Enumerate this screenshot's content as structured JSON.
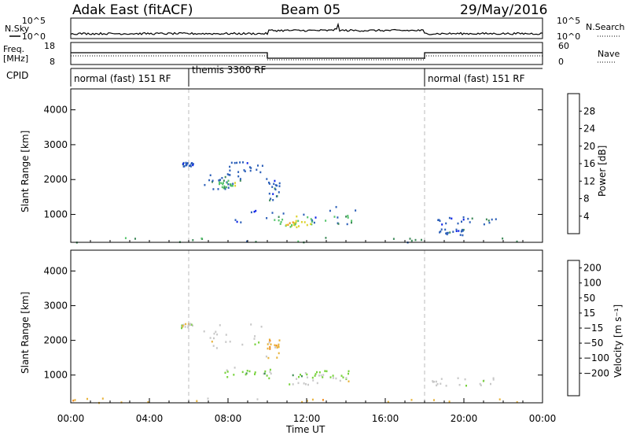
{
  "header": {
    "title_left": "Adak East (fitACF)",
    "title_center": "Beam 05",
    "title_right": "29/May/2016"
  },
  "aux": {
    "nsky_label": "N.Sky",
    "nsky_ticks": [
      "10^5",
      "10^0"
    ],
    "nsearch_label": "N.Search",
    "nsearch_ticks": [
      "10^5",
      "10^0"
    ],
    "freq_label_1": "Freq.",
    "freq_label_2": "[MHz]",
    "freq_ticks": [
      "18",
      "8"
    ],
    "nave_label": "Nave",
    "nave_ticks": [
      "60",
      "0"
    ],
    "cpid_label": "CPID",
    "cpid_segments": [
      {
        "label": "normal (fast) 151 RF",
        "start_hour": 0,
        "end_hour": 6
      },
      {
        "label": "themis 3300 RF",
        "start_hour": 6,
        "end_hour": 18
      },
      {
        "label": "normal (fast) 151 RF",
        "start_hour": 18,
        "end_hour": 24
      }
    ]
  },
  "chart_data": [
    {
      "type": "scatter",
      "name": "power",
      "ylabel": "Slant Range [km]",
      "xlim": [
        0,
        24
      ],
      "ylim": [
        200,
        4600
      ],
      "yticks": [
        "1000",
        "2000",
        "3000",
        "4000"
      ],
      "colorbar_label": "Power [dB]",
      "colorbar_ticks": [
        "4",
        "8",
        "12",
        "16",
        "20",
        "24",
        "28"
      ],
      "colorbar_colors": [
        "#0b22e8",
        "#2b5fb8",
        "#3f8a5a",
        "#54c46a",
        "#dcd22a",
        "#ee9a1e",
        "#ee3a12",
        "#e4101a"
      ],
      "scatter_regions": [
        {
          "x": [
            5.6,
            6.2
          ],
          "y": [
            2380,
            2520
          ],
          "level": 1
        },
        {
          "x": [
            6.6,
            8.6
          ],
          "y": [
            1750,
            2250
          ],
          "level": 1
        },
        {
          "x": [
            7.4,
            8.4
          ],
          "y": [
            1780,
            2000
          ],
          "level": 3
        },
        {
          "x": [
            8.0,
            9.8
          ],
          "y": [
            2100,
            2550
          ],
          "level": 1
        },
        {
          "x": [
            9.9,
            10.6
          ],
          "y": [
            1400,
            2050
          ],
          "level": 1
        },
        {
          "x": [
            7.8,
            14.6
          ],
          "y": [
            720,
            1250
          ],
          "level": 1
        },
        {
          "x": [
            10.2,
            14.4
          ],
          "y": [
            700,
            1000
          ],
          "level": 3
        },
        {
          "x": [
            10.6,
            12.2
          ],
          "y": [
            660,
            820
          ],
          "level": 4
        },
        {
          "x": [
            18.3,
            21.6
          ],
          "y": [
            700,
            950
          ],
          "level": 1
        },
        {
          "x": [
            18.6,
            20.0
          ],
          "y": [
            420,
            600
          ],
          "level": 1
        },
        {
          "x": [
            0,
            24
          ],
          "y": [
            220,
            360
          ],
          "level": 2
        }
      ]
    },
    {
      "type": "scatter",
      "name": "velocity",
      "ylabel": "Slant Range [km]",
      "xlim": [
        0,
        24
      ],
      "ylim": [
        200,
        4600
      ],
      "yticks": [
        "1000",
        "2000",
        "3000",
        "4000"
      ],
      "xticks": [
        "00:00",
        "04:00",
        "08:00",
        "12:00",
        "16:00",
        "20:00",
        "00:00"
      ],
      "xlabel": "Time UT",
      "colorbar_label": "Velocity [m s⁻¹]",
      "colorbar_ticks": [
        "200",
        "100",
        "50",
        "15",
        "−15",
        "−50",
        "−100",
        "−200"
      ],
      "colorbar_colors": [
        "#2030c8",
        "#3a70a0",
        "#3c8c50",
        "#78d23c",
        "#c8c8c8",
        "#e8b43c",
        "#f08c1e",
        "#f05010",
        "#e81414"
      ],
      "scatter_regions": [
        {
          "x": [
            5.6,
            6.2
          ],
          "y": [
            2380,
            2520
          ],
          "level": 4
        },
        {
          "x": [
            6.6,
            9.8
          ],
          "y": [
            1750,
            2550
          ],
          "level": 4
        },
        {
          "x": [
            9.9,
            10.6
          ],
          "y": [
            1500,
            2050
          ],
          "level": 5
        },
        {
          "x": [
            7.8,
            10.2
          ],
          "y": [
            900,
            1250
          ],
          "level": 3
        },
        {
          "x": [
            10.0,
            14.4
          ],
          "y": [
            720,
            1100
          ],
          "level": 4
        },
        {
          "x": [
            11.0,
            14.2
          ],
          "y": [
            950,
            1150
          ],
          "level": 3
        },
        {
          "x": [
            18.3,
            21.6
          ],
          "y": [
            700,
            950
          ],
          "level": 4
        },
        {
          "x": [
            0,
            24
          ],
          "y": [
            220,
            360
          ],
          "level": 5
        }
      ]
    }
  ]
}
